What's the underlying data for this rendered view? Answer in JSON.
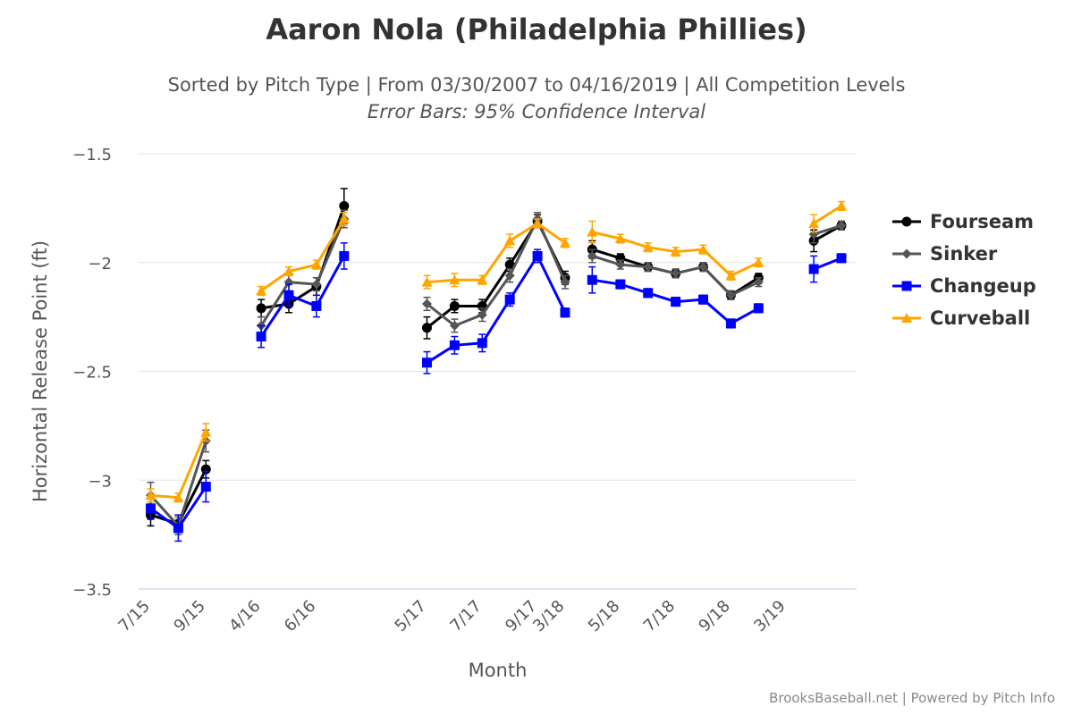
{
  "chart_data": {
    "type": "line",
    "title": "Aaron Nola (Philadelphia Phillies)",
    "subtitle": "Sorted by Pitch Type | From 03/30/2007 to 04/16/2019 | All Competition Levels",
    "subtitle2": "Error Bars: 95% Confidence Interval",
    "xlabel": "Month",
    "ylabel": "Horizontal Release Point (ft)",
    "ylim": [
      -3.5,
      -1.5
    ],
    "yticks": [
      -1.5,
      -2,
      -2.5,
      -3,
      -3.5
    ],
    "ytick_labels": [
      "−1.5",
      "−2",
      "−2.5",
      "−3",
      "−3.5"
    ],
    "grid": true,
    "legend_position": "right",
    "x_labeled_ticks": [
      {
        "i": 0,
        "label": "7/15"
      },
      {
        "i": 2,
        "label": "9/15"
      },
      {
        "i": 4,
        "label": "4/16"
      },
      {
        "i": 6,
        "label": "6/16"
      },
      {
        "i": 10,
        "label": "5/17"
      },
      {
        "i": 12,
        "label": "7/17"
      },
      {
        "i": 14,
        "label": "9/17"
      },
      {
        "i": 15,
        "label": "3/18"
      },
      {
        "i": 17,
        "label": "5/18"
      },
      {
        "i": 19,
        "label": "7/18"
      },
      {
        "i": 21,
        "label": "9/18"
      },
      {
        "i": 23,
        "label": "3/19"
      }
    ],
    "x_index_count": 25,
    "series": [
      {
        "name": "Fourseam",
        "color": "#000000",
        "marker": "circle",
        "segments": [
          [
            [
              0,
              -3.16,
              0.05
            ],
            [
              1,
              -3.2,
              0.04
            ],
            [
              2,
              -2.95,
              0.04
            ]
          ],
          [
            [
              4,
              -2.21,
              0.04
            ],
            [
              5,
              -2.19,
              0.04
            ],
            [
              6,
              -2.11,
              0.04
            ],
            [
              7,
              -1.74,
              0.08
            ]
          ],
          [
            [
              10,
              -2.3,
              0.05
            ],
            [
              11,
              -2.2,
              0.03
            ],
            [
              12,
              -2.2,
              0.03
            ],
            [
              13,
              -2.01,
              0.03
            ],
            [
              14,
              -1.81,
              0.03
            ],
            [
              15,
              -2.07,
              0.03
            ]
          ],
          [
            [
              15.98,
              -1.94,
              0.04
            ],
            [
              17,
              -1.98,
              0.02
            ],
            [
              18,
              -2.02,
              0.02
            ],
            [
              19,
              -2.05,
              0.02
            ],
            [
              20,
              -2.02,
              0.02
            ],
            [
              21,
              -2.15,
              0.02
            ],
            [
              22,
              -2.07,
              0.02
            ]
          ],
          [
            [
              24,
              -1.9,
              0.05
            ],
            [
              25,
              -1.83,
              0.02
            ]
          ]
        ]
      },
      {
        "name": "Sinker",
        "color": "#555555",
        "marker": "diamond",
        "segments": [
          [
            [
              0,
              -3.07,
              0.06
            ],
            [
              1,
              -3.21,
              0.04
            ],
            [
              2,
              -2.82,
              0.05
            ]
          ],
          [
            [
              4,
              -2.29,
              0.04
            ],
            [
              5,
              -2.09,
              0.04
            ],
            [
              6,
              -2.1,
              0.03
            ],
            [
              7,
              -1.8,
              0.04
            ]
          ],
          [
            [
              10,
              -2.19,
              0.03
            ],
            [
              11,
              -2.29,
              0.03
            ],
            [
              12,
              -2.24,
              0.03
            ],
            [
              13,
              -2.06,
              0.03
            ],
            [
              14,
              -1.8,
              0.03
            ],
            [
              15,
              -2.09,
              0.03
            ]
          ],
          [
            [
              15.98,
              -1.97,
              0.03
            ],
            [
              17,
              -2.01,
              0.02
            ],
            [
              18,
              -2.02,
              0.02
            ],
            [
              19,
              -2.05,
              0.02
            ],
            [
              20,
              -2.02,
              0.02
            ],
            [
              21,
              -2.15,
              0.02
            ],
            [
              22,
              -2.09,
              0.02
            ]
          ],
          [
            [
              24,
              -1.87,
              0.04
            ],
            [
              25,
              -1.83,
              0.02
            ]
          ]
        ]
      },
      {
        "name": "Changeup",
        "color": "#0000ff",
        "marker": "square",
        "segments": [
          [
            [
              0,
              -3.13,
              0.05
            ],
            [
              1,
              -3.22,
              0.06
            ],
            [
              2,
              -3.03,
              0.07
            ]
          ],
          [
            [
              4,
              -2.34,
              0.05
            ],
            [
              5,
              -2.15,
              0.05
            ],
            [
              6,
              -2.2,
              0.05
            ],
            [
              7,
              -1.97,
              0.06
            ]
          ],
          [
            [
              10,
              -2.46,
              0.05
            ],
            [
              11,
              -2.38,
              0.04
            ],
            [
              12,
              -2.37,
              0.04
            ],
            [
              13,
              -2.17,
              0.03
            ],
            [
              14,
              -1.97,
              0.03
            ],
            [
              15,
              -2.23,
              0.02
            ]
          ],
          [
            [
              15.98,
              -2.08,
              0.06
            ],
            [
              17,
              -2.1,
              0.02
            ],
            [
              18,
              -2.14,
              0.02
            ],
            [
              19,
              -2.18,
              0.02
            ],
            [
              20,
              -2.17,
              0.02
            ],
            [
              21,
              -2.28,
              0.02
            ],
            [
              22,
              -2.21,
              0.02
            ]
          ],
          [
            [
              24,
              -2.03,
              0.06
            ],
            [
              25,
              -1.98,
              0.02
            ]
          ]
        ]
      },
      {
        "name": "Curveball",
        "color": "#ffa500",
        "marker": "triangle",
        "segments": [
          [
            [
              0,
              -3.07,
              0.03
            ],
            [
              1,
              -3.08,
              0.02
            ],
            [
              2,
              -2.78,
              0.04
            ]
          ],
          [
            [
              4,
              -2.13,
              0.02
            ],
            [
              5,
              -2.04,
              0.02
            ],
            [
              6,
              -2.01,
              0.02
            ],
            [
              7,
              -1.8,
              0.03
            ]
          ],
          [
            [
              10,
              -2.09,
              0.03
            ],
            [
              11,
              -2.08,
              0.03
            ],
            [
              12,
              -2.08,
              0.02
            ],
            [
              13,
              -1.9,
              0.03
            ],
            [
              14,
              -1.82,
              0.02
            ],
            [
              15,
              -1.91,
              0.02
            ]
          ],
          [
            [
              15.98,
              -1.86,
              0.05
            ],
            [
              17,
              -1.89,
              0.02
            ],
            [
              18,
              -1.93,
              0.02
            ],
            [
              19,
              -1.95,
              0.02
            ],
            [
              20,
              -1.94,
              0.02
            ],
            [
              21,
              -2.06,
              0.02
            ],
            [
              22,
              -2.0,
              0.02
            ]
          ],
          [
            [
              24,
              -1.82,
              0.04
            ],
            [
              25,
              -1.74,
              0.02
            ]
          ]
        ]
      }
    ],
    "credits": "BrooksBaseball.net | Powered by Pitch Info"
  }
}
